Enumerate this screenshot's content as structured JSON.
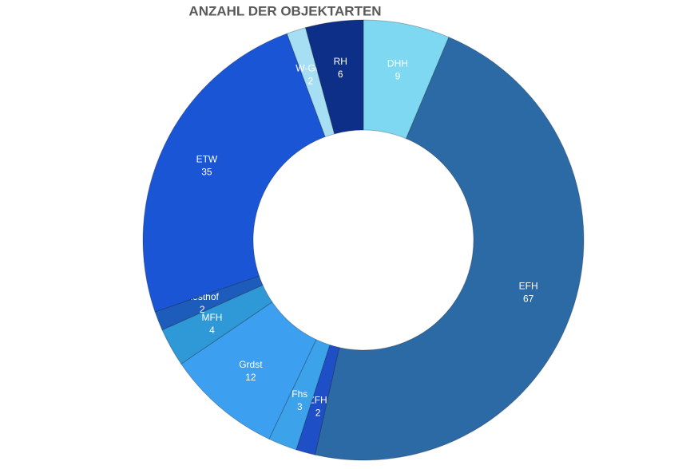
{
  "chart_data": {
    "type": "donut",
    "title": "ANZAHL DER OBJEKTARTEN",
    "categories": [
      "DHH",
      "EFH",
      "ZFH",
      "Fhs",
      "Grdst",
      "MFH",
      "Resthof",
      "ETW",
      "W-Ges",
      "RH"
    ],
    "values": [
      9,
      67,
      2,
      3,
      12,
      4,
      2,
      35,
      2,
      6
    ],
    "colors": [
      "#7ed8f2",
      "#2c6aa6",
      "#1f4fc6",
      "#3ca2ea",
      "#3d9ff0",
      "#2f98d6",
      "#1e5cbc",
      "#1a55d6",
      "#a6def4",
      "#0d2f88"
    ]
  }
}
